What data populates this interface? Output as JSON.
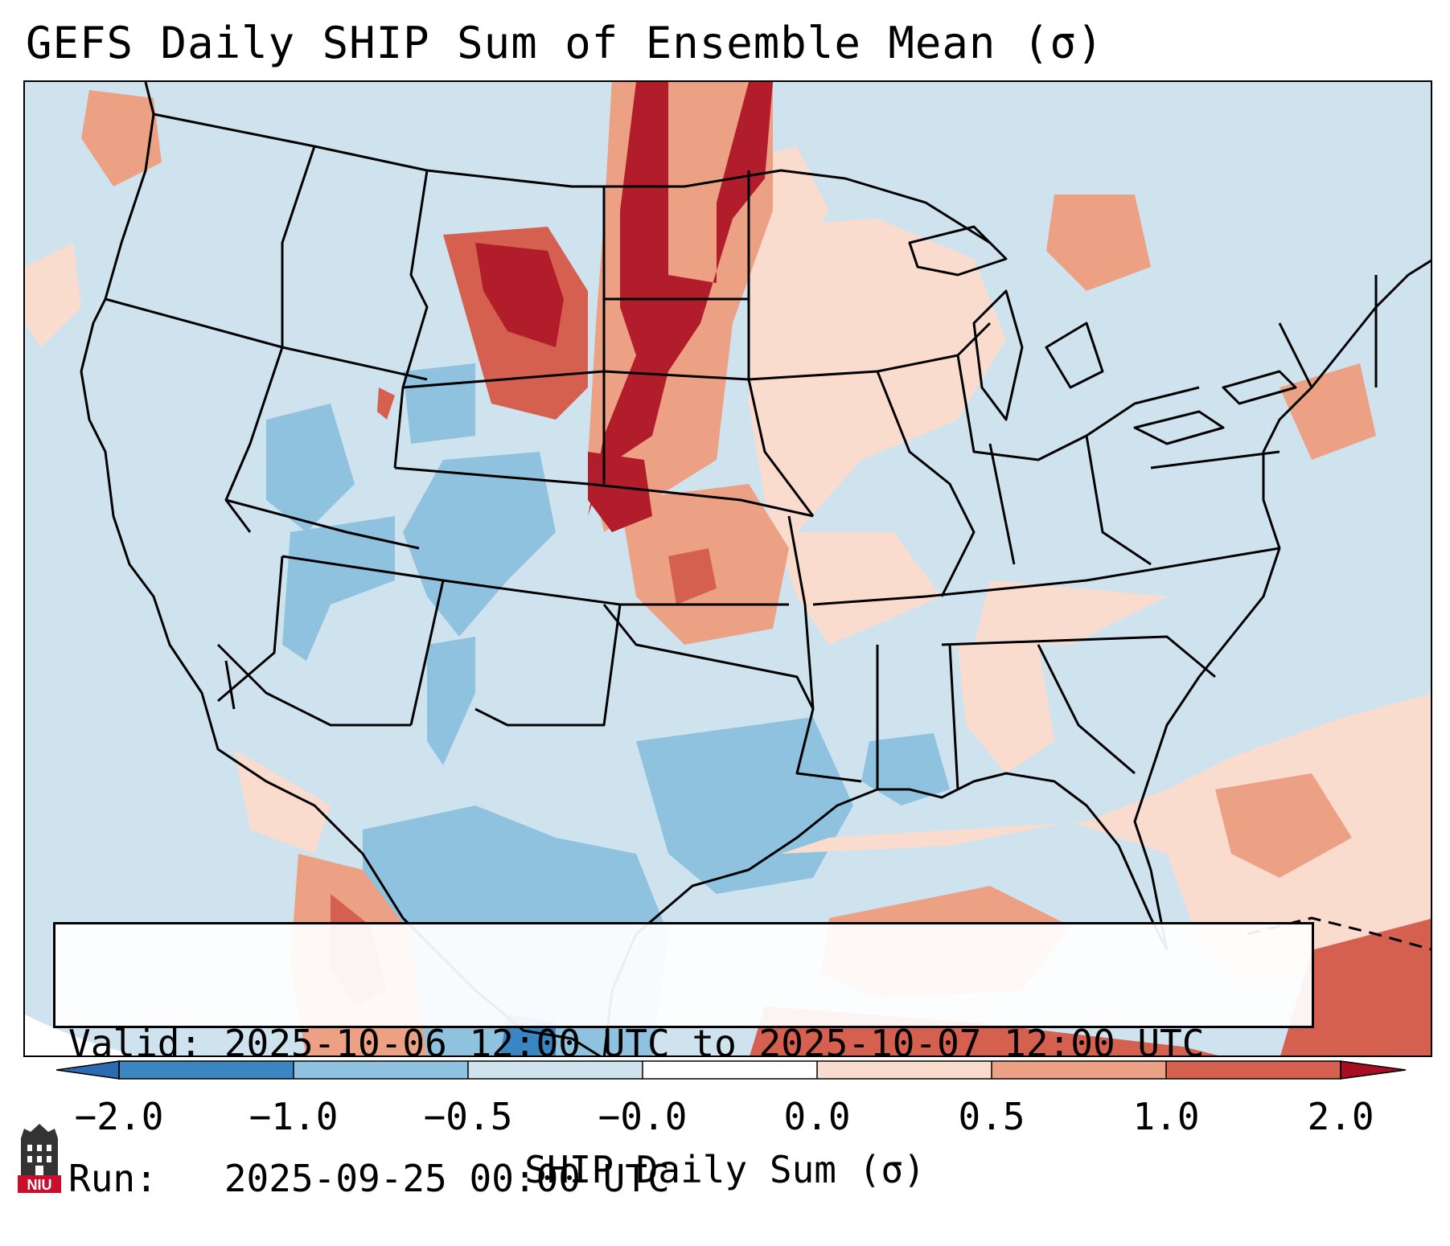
{
  "title": "GEFS Daily SHIP Sum of Ensemble Mean (σ)",
  "info": {
    "valid_line": "Valid: 2025-10-06 12:00 UTC to 2025-10-07 12:00 UTC",
    "run_line": "Run:   2025-09-25 00:00 UTC"
  },
  "colorbar": {
    "label": "SHIP Daily Sum (σ)",
    "extend": "both",
    "ticks": [
      "−2.0",
      "−1.0",
      "−0.5",
      "−0.0",
      "0.0",
      "0.5",
      "1.0",
      "2.0"
    ],
    "colors": [
      "#3a86c2",
      "#8fc2de",
      "#cfe3ef",
      "#f9dcce",
      "#eda184",
      "#d5604f",
      "#b11d2b"
    ],
    "under_color": "#2b6cb0",
    "over_color": "#a50f21"
  },
  "map": {
    "region": "Continental United States",
    "variable": "SHIP ensemble mean anomaly",
    "highlights": [
      {
        "area": "Northern Plains / Montana",
        "level": "above 1.0"
      },
      {
        "area": "Gulf of Mexico / Caribbean",
        "level": "0.5 to 1.0"
      },
      {
        "area": "Southwest / Mexico",
        "level": "-1.0 to -0.5"
      }
    ]
  },
  "logo": {
    "text": "NIU"
  }
}
